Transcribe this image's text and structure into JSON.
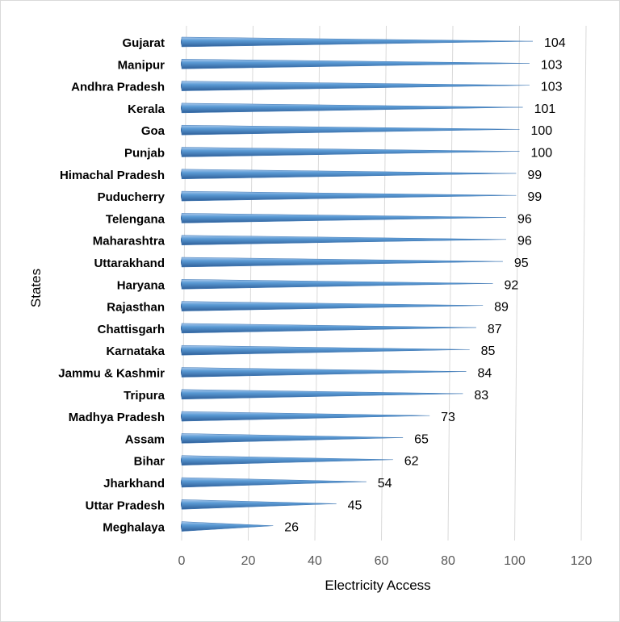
{
  "chart_data": {
    "type": "bar",
    "orientation": "horizontal",
    "bar_shape": "cone",
    "xlabel": "Electricity Access",
    "ylabel": "States",
    "xlim": [
      0,
      120
    ],
    "xticks": [
      0,
      20,
      40,
      60,
      80,
      100,
      120
    ],
    "grid": true,
    "legend": "none",
    "bar_color": "#5b9bd5",
    "categories": [
      "Gujarat",
      "Manipur",
      "Andhra Pradesh",
      "Kerala",
      "Goa",
      "Punjab",
      "Himachal Pradesh",
      "Puducherry",
      "Telengana",
      "Maharashtra",
      "Uttarakhand",
      "Haryana",
      "Rajasthan",
      "Chattisgarh",
      "Karnataka",
      "Jammu & Kashmir",
      "Tripura",
      "Madhya Pradesh",
      "Assam",
      "Bihar",
      "Jharkhand",
      "Uttar Pradesh",
      "Meghalaya"
    ],
    "values": [
      104,
      103,
      103,
      101,
      100,
      100,
      99,
      99,
      96,
      96,
      95,
      92,
      89,
      87,
      85,
      84,
      83,
      73,
      65,
      62,
      54,
      45,
      26
    ]
  }
}
